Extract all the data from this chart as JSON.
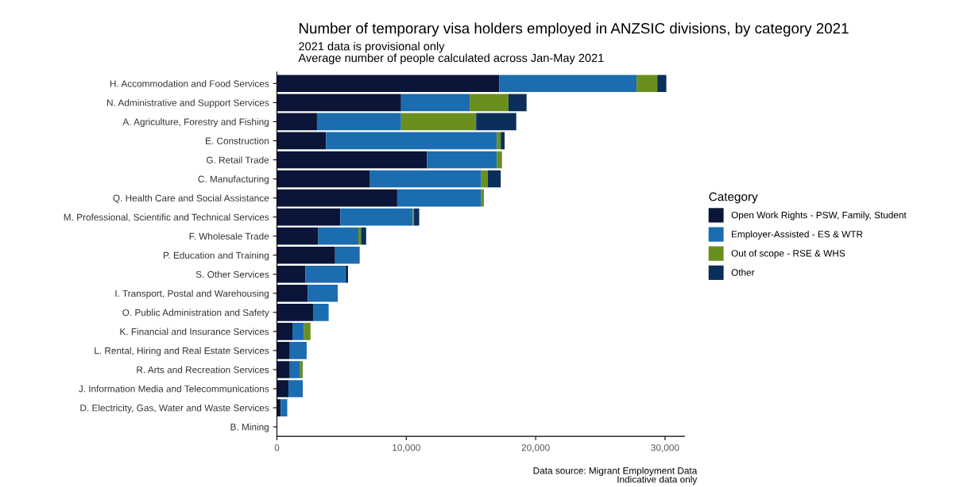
{
  "chart_data": {
    "type": "bar",
    "orientation": "horizontal",
    "stacked": true,
    "title": "Number of temporary visa holders employed in ANZSIC divisions, by category 2021",
    "subtitle": "2021 data is provisional only\nAverage number of people calculated across Jan-May 2021",
    "legend_title": "Category",
    "categories": [
      "H. Accommodation and Food Services",
      "N. Administrative and Support Services",
      "A. Agriculture, Forestry and Fishing",
      "E. Construction",
      "G. Retail Trade",
      "C. Manufacturing",
      "Q. Health Care and Social Assistance",
      "M. Professional, Scientific and Technical Services",
      "F. Wholesale Trade",
      "P. Education and Training",
      "S. Other Services",
      "I. Transport, Postal and Warehousing",
      "O. Public Administration and Safety",
      "K. Financial and Insurance Services",
      "L. Rental, Hiring and Real Estate Services",
      "R. Arts and Recreation Services",
      "J. Information Media and Telecommunications",
      "D. Electricity, Gas, Water and Waste Services",
      "B. Mining"
    ],
    "series": [
      {
        "name": "Open Work Rights - PSW, Family, Student",
        "color": "#0a1538",
        "values": [
          17200,
          9600,
          3100,
          3800,
          11600,
          7200,
          9300,
          4900,
          3200,
          4500,
          2200,
          2400,
          2800,
          1200,
          1000,
          1000,
          900,
          300,
          null
        ]
      },
      {
        "name": "Employer-Assisted - ES & WTR",
        "color": "#1c6cb0",
        "values": [
          10600,
          5300,
          6500,
          13200,
          5400,
          8600,
          6500,
          5600,
          3100,
          1900,
          3100,
          2300,
          1200,
          900,
          1300,
          800,
          1100,
          500,
          0
        ]
      },
      {
        "name": "Out of scope - RSE & WHS",
        "color": "#6b8f1f",
        "values": [
          1600,
          3000,
          5800,
          300,
          400,
          500,
          200,
          100,
          200,
          0,
          0,
          0,
          0,
          500,
          0,
          200,
          0,
          0,
          0
        ]
      },
      {
        "name": "Other",
        "color": "#0c2f5a",
        "values": [
          700,
          1400,
          3100,
          300,
          0,
          1000,
          0,
          400,
          400,
          0,
          200,
          0,
          0,
          0,
          0,
          0,
          0,
          0,
          0
        ]
      }
    ],
    "xlim": [
      0,
      31500
    ],
    "xticks": [
      0,
      {
        "value": 10000,
        "label": "10,000"
      },
      {
        "value": 20000,
        "label": "20,000"
      },
      {
        "value": 30000,
        "label": "30,000"
      }
    ],
    "grid": false,
    "legend": "right",
    "annotations": [
      "Data source: Migrant Employment Data\nIndicative data only"
    ]
  }
}
